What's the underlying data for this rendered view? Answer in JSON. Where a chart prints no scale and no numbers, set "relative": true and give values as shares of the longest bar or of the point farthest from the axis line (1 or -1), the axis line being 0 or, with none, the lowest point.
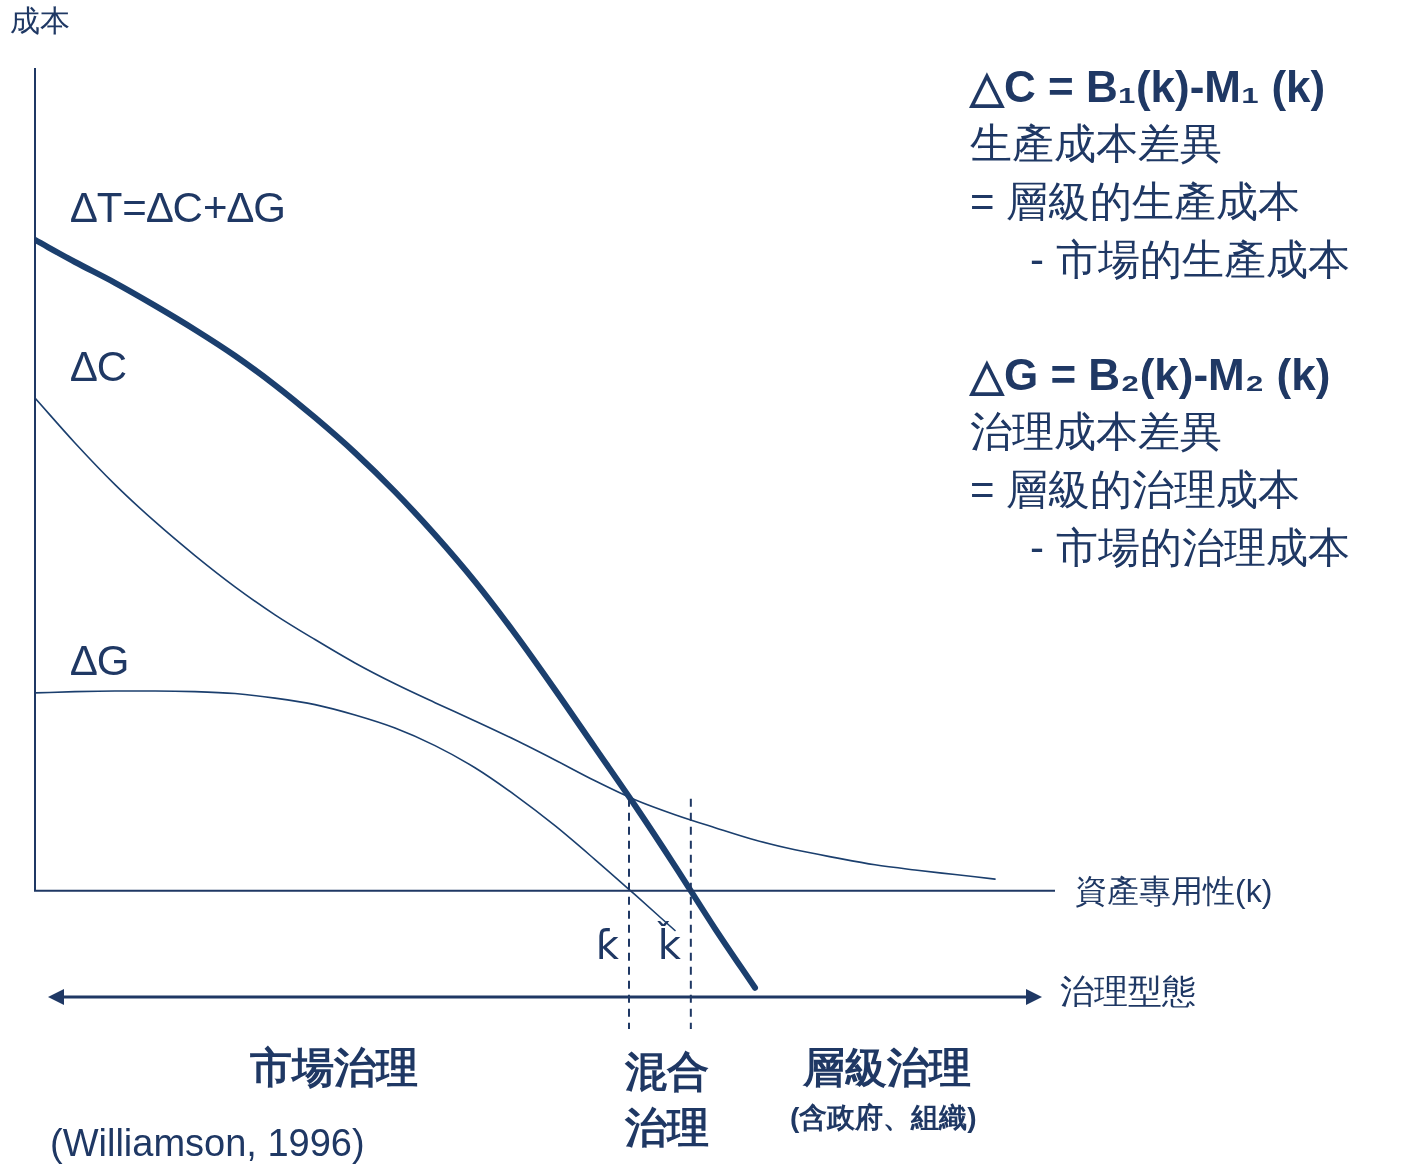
{
  "chart_data": {
    "type": "line",
    "relative": true,
    "xlabel": "資產專用性(k)",
    "categories": [
      null,
      null,
      null,
      null,
      null,
      null,
      null,
      null,
      null,
      null,
      null,
      null,
      null,
      null,
      null,
      null,
      null,
      null,
      null,
      null,
      null,
      null,
      null,
      null,
      null
    ],
    "series": [
      {
        "name": "∆T=∆C+∆G",
        "color": "#1b3f6e",
        "values": [
          1.0,
          0.966,
          0.934,
          0.899,
          0.862,
          0.822,
          0.777,
          0.727,
          0.673,
          0.613,
          0.547,
          0.475,
          0.395,
          0.309,
          0.22,
          0.131,
          0.038,
          -0.058,
          -0.149,
          null,
          null,
          null,
          null,
          null,
          null
        ]
      },
      {
        "name": "∆C",
        "color": "#1b3f6e",
        "values": [
          0.757,
          0.688,
          0.624,
          0.567,
          0.515,
          0.467,
          0.424,
          0.386,
          0.35,
          0.318,
          0.289,
          0.261,
          0.232,
          0.201,
          0.169,
          0.14,
          0.117,
          0.097,
          0.078,
          0.063,
          0.051,
          0.04,
          0.032,
          0.025,
          0.018
        ]
      },
      {
        "name": "∆G",
        "color": "#1b3f6e",
        "values": [
          0.304,
          0.306,
          0.307,
          0.307,
          0.306,
          0.303,
          0.296,
          0.286,
          0.27,
          0.25,
          0.223,
          0.189,
          0.147,
          0.1,
          0.048,
          -0.006,
          -0.061,
          null,
          null,
          null,
          null,
          null,
          null,
          null,
          null
        ]
      }
    ],
    "annotations": [
      "△C = B₁(k)-M₁ (k)",
      "生產成本差異",
      "= 層級的生產成本",
      "- 市場的生產成本",
      "△G = B₂(k)-M₂ (k)",
      "治理成本差異",
      "= 層級的治理成本",
      "- 市場的治理成本",
      "治理型態",
      "市場治理",
      "混合治理",
      "層級治理",
      "(含政府、組織)",
      "(Williamson, 1996)",
      "成本",
      "ƙ",
      "ǩ"
    ],
    "legend": false,
    "grid": false,
    "marker": "none",
    "line_style": "solid"
  }
}
